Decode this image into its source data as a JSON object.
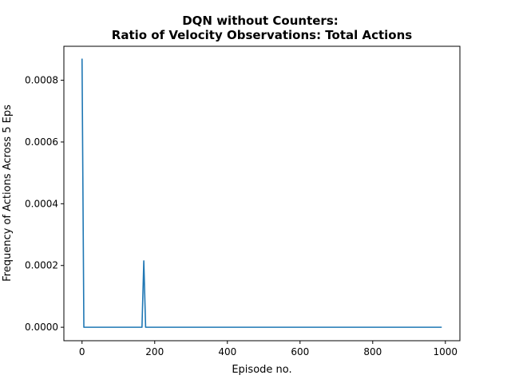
{
  "chart_data": {
    "type": "line",
    "title_line1": "DQN without Counters:",
    "title_line2": "Ratio of Velocity Observations: Total Actions",
    "xlabel": "Episode no.",
    "ylabel": "Frequency of Actions Across 5 Eps",
    "xlim": [
      -50,
      1040
    ],
    "ylim": [
      -4.36e-05,
      0.00091
    ],
    "grid": false,
    "line_color": "#1f77b4",
    "x_ticks": [
      {
        "value": 0,
        "label": "0"
      },
      {
        "value": 200,
        "label": "200"
      },
      {
        "value": 400,
        "label": "400"
      },
      {
        "value": 600,
        "label": "600"
      },
      {
        "value": 800,
        "label": "800"
      },
      {
        "value": 1000,
        "label": "1000"
      }
    ],
    "y_ticks": [
      {
        "value": 0,
        "label": "0.0000"
      },
      {
        "value": 0.0002,
        "label": "0.0002"
      },
      {
        "value": 0.0004,
        "label": "0.0004"
      },
      {
        "value": 0.0006,
        "label": "0.0006"
      },
      {
        "value": 0.0008,
        "label": "0.0008"
      }
    ],
    "series": [
      {
        "x": [
          0,
          5,
          10,
          165,
          170,
          175,
          990
        ],
        "y": [
          0.00087,
          0,
          0,
          0,
          0.000215,
          0,
          0
        ]
      }
    ]
  }
}
